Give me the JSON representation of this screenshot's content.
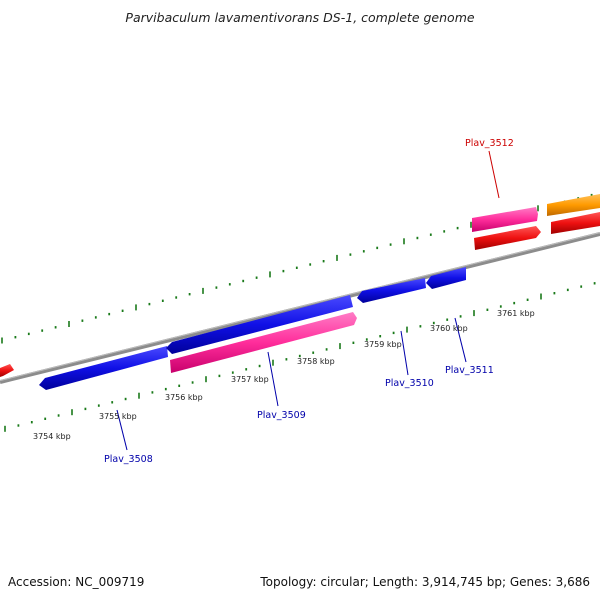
{
  "title": "Parvibaculum lavamentivorans DS-1, complete genome",
  "footer": {
    "accession": "Accession: NC_009719",
    "summary": "Topology: circular; Length: 3,914,745 bp; Genes: 3,686"
  },
  "colors": {
    "backbone": "#8c8c8c",
    "tick": "#1a7a1a",
    "forward_gene": "#ff2d9b",
    "reverse_gene": "#1010e6",
    "red_gene": "#ee1111",
    "orange_gene": "#ff9a00",
    "label_red": "#cc0000",
    "label_blue": "#0000aa",
    "scale_text": "#222222"
  },
  "scale_labels": [
    "3754 kbp",
    "3755 kbp",
    "3756 kbp",
    "3757 kbp",
    "3758 kbp",
    "3759 kbp",
    "3760 kbp",
    "3761 kbp"
  ],
  "gene_labels": [
    {
      "id": "plav-3508",
      "text": "Plav_3508",
      "color": "label_blue"
    },
    {
      "id": "plav-3509",
      "text": "Plav_3509",
      "color": "label_blue"
    },
    {
      "id": "plav-3510",
      "text": "Plav_3510",
      "color": "label_blue"
    },
    {
      "id": "plav-3511",
      "text": "Plav_3511",
      "color": "label_blue"
    },
    {
      "id": "plav-3512",
      "text": "Plav_3512",
      "color": "label_red"
    }
  ]
}
